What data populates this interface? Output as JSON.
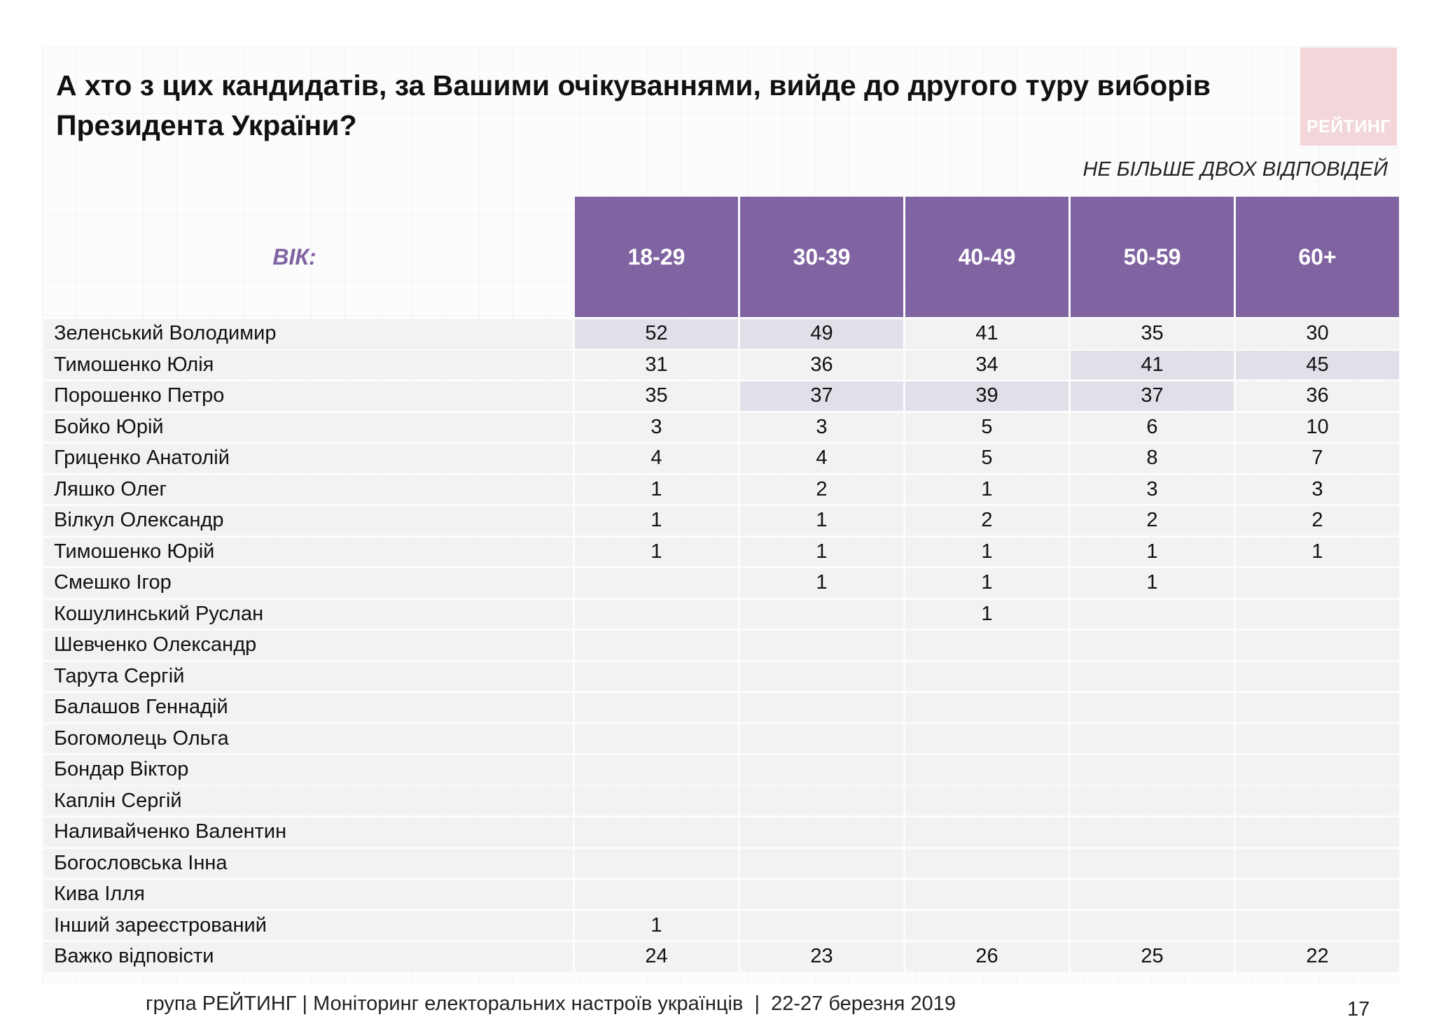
{
  "title_line1": "А хто з цих кандидатів, за Вашими очікуваннями, вийде до другого туру виборів",
  "title_line2": "Президента України?",
  "logo_text": "РЕЙТИНГ",
  "note": "НЕ БІЛЬШЕ ДВОХ ВІДПОВІДЕЙ",
  "table": {
    "row_header_label": "ВІК:",
    "columns": [
      "18-29",
      "30-39",
      "40-49",
      "50-59",
      "60+"
    ],
    "highlight_color": "#e2dfe9",
    "header_color": "#8064a2",
    "rows": [
      {
        "name": "Зеленський Володимир",
        "values": [
          "52",
          "49",
          "41",
          "35",
          "30"
        ],
        "highlight": [
          0,
          1
        ]
      },
      {
        "name": "Тимошенко Юлія",
        "values": [
          "31",
          "36",
          "34",
          "41",
          "45"
        ],
        "highlight": [
          3,
          4
        ]
      },
      {
        "name": "Порошенко Петро",
        "values": [
          "35",
          "37",
          "39",
          "37",
          "36"
        ],
        "highlight": [
          1,
          2,
          3
        ]
      },
      {
        "name": "Бойко Юрій",
        "values": [
          "3",
          "3",
          "5",
          "6",
          "10"
        ],
        "highlight": []
      },
      {
        "name": "Гриценко Анатолій",
        "values": [
          "4",
          "4",
          "5",
          "8",
          "7"
        ],
        "highlight": []
      },
      {
        "name": "Ляшко Олег",
        "values": [
          "1",
          "2",
          "1",
          "3",
          "3"
        ],
        "highlight": []
      },
      {
        "name": "Вілкул Олександр",
        "values": [
          "1",
          "1",
          "2",
          "2",
          "2"
        ],
        "highlight": []
      },
      {
        "name": "Тимошенко Юрій",
        "values": [
          "1",
          "1",
          "1",
          "1",
          "1"
        ],
        "highlight": []
      },
      {
        "name": "Смешко Ігор",
        "values": [
          "",
          "1",
          "1",
          "1",
          ""
        ],
        "highlight": []
      },
      {
        "name": "Кошулинський Руслан",
        "values": [
          "",
          "",
          "1",
          "",
          ""
        ],
        "highlight": []
      },
      {
        "name": "Шевченко Олександр",
        "values": [
          "",
          "",
          "",
          "",
          ""
        ],
        "highlight": []
      },
      {
        "name": "Тарута Сергій",
        "values": [
          "",
          "",
          "",
          "",
          ""
        ],
        "highlight": []
      },
      {
        "name": "Балашов Геннадій",
        "values": [
          "",
          "",
          "",
          "",
          ""
        ],
        "highlight": []
      },
      {
        "name": "Богомолець Ольга",
        "values": [
          "",
          "",
          "",
          "",
          ""
        ],
        "highlight": []
      },
      {
        "name": "Бондар Віктор",
        "values": [
          "",
          "",
          "",
          "",
          ""
        ],
        "highlight": []
      },
      {
        "name": "Каплін Сергій",
        "values": [
          "",
          "",
          "",
          "",
          ""
        ],
        "highlight": []
      },
      {
        "name": "Наливайченко Валентин",
        "values": [
          "",
          "",
          "",
          "",
          ""
        ],
        "highlight": []
      },
      {
        "name": "Богословська Інна",
        "values": [
          "",
          "",
          "",
          "",
          ""
        ],
        "highlight": []
      },
      {
        "name": "Кива Ілля",
        "values": [
          "",
          "",
          "",
          "",
          ""
        ],
        "highlight": []
      },
      {
        "name": "Інший зареєстрований",
        "values": [
          "1",
          "",
          "",
          "",
          ""
        ],
        "highlight": []
      },
      {
        "name": "Важко відповісти",
        "values": [
          "24",
          "23",
          "26",
          "25",
          "22"
        ],
        "highlight": []
      }
    ]
  },
  "footer": "група РЕЙТИНГ | Моніторинг електоральних настроїв українців  |  22-27 березня 2019",
  "page_number": "17"
}
